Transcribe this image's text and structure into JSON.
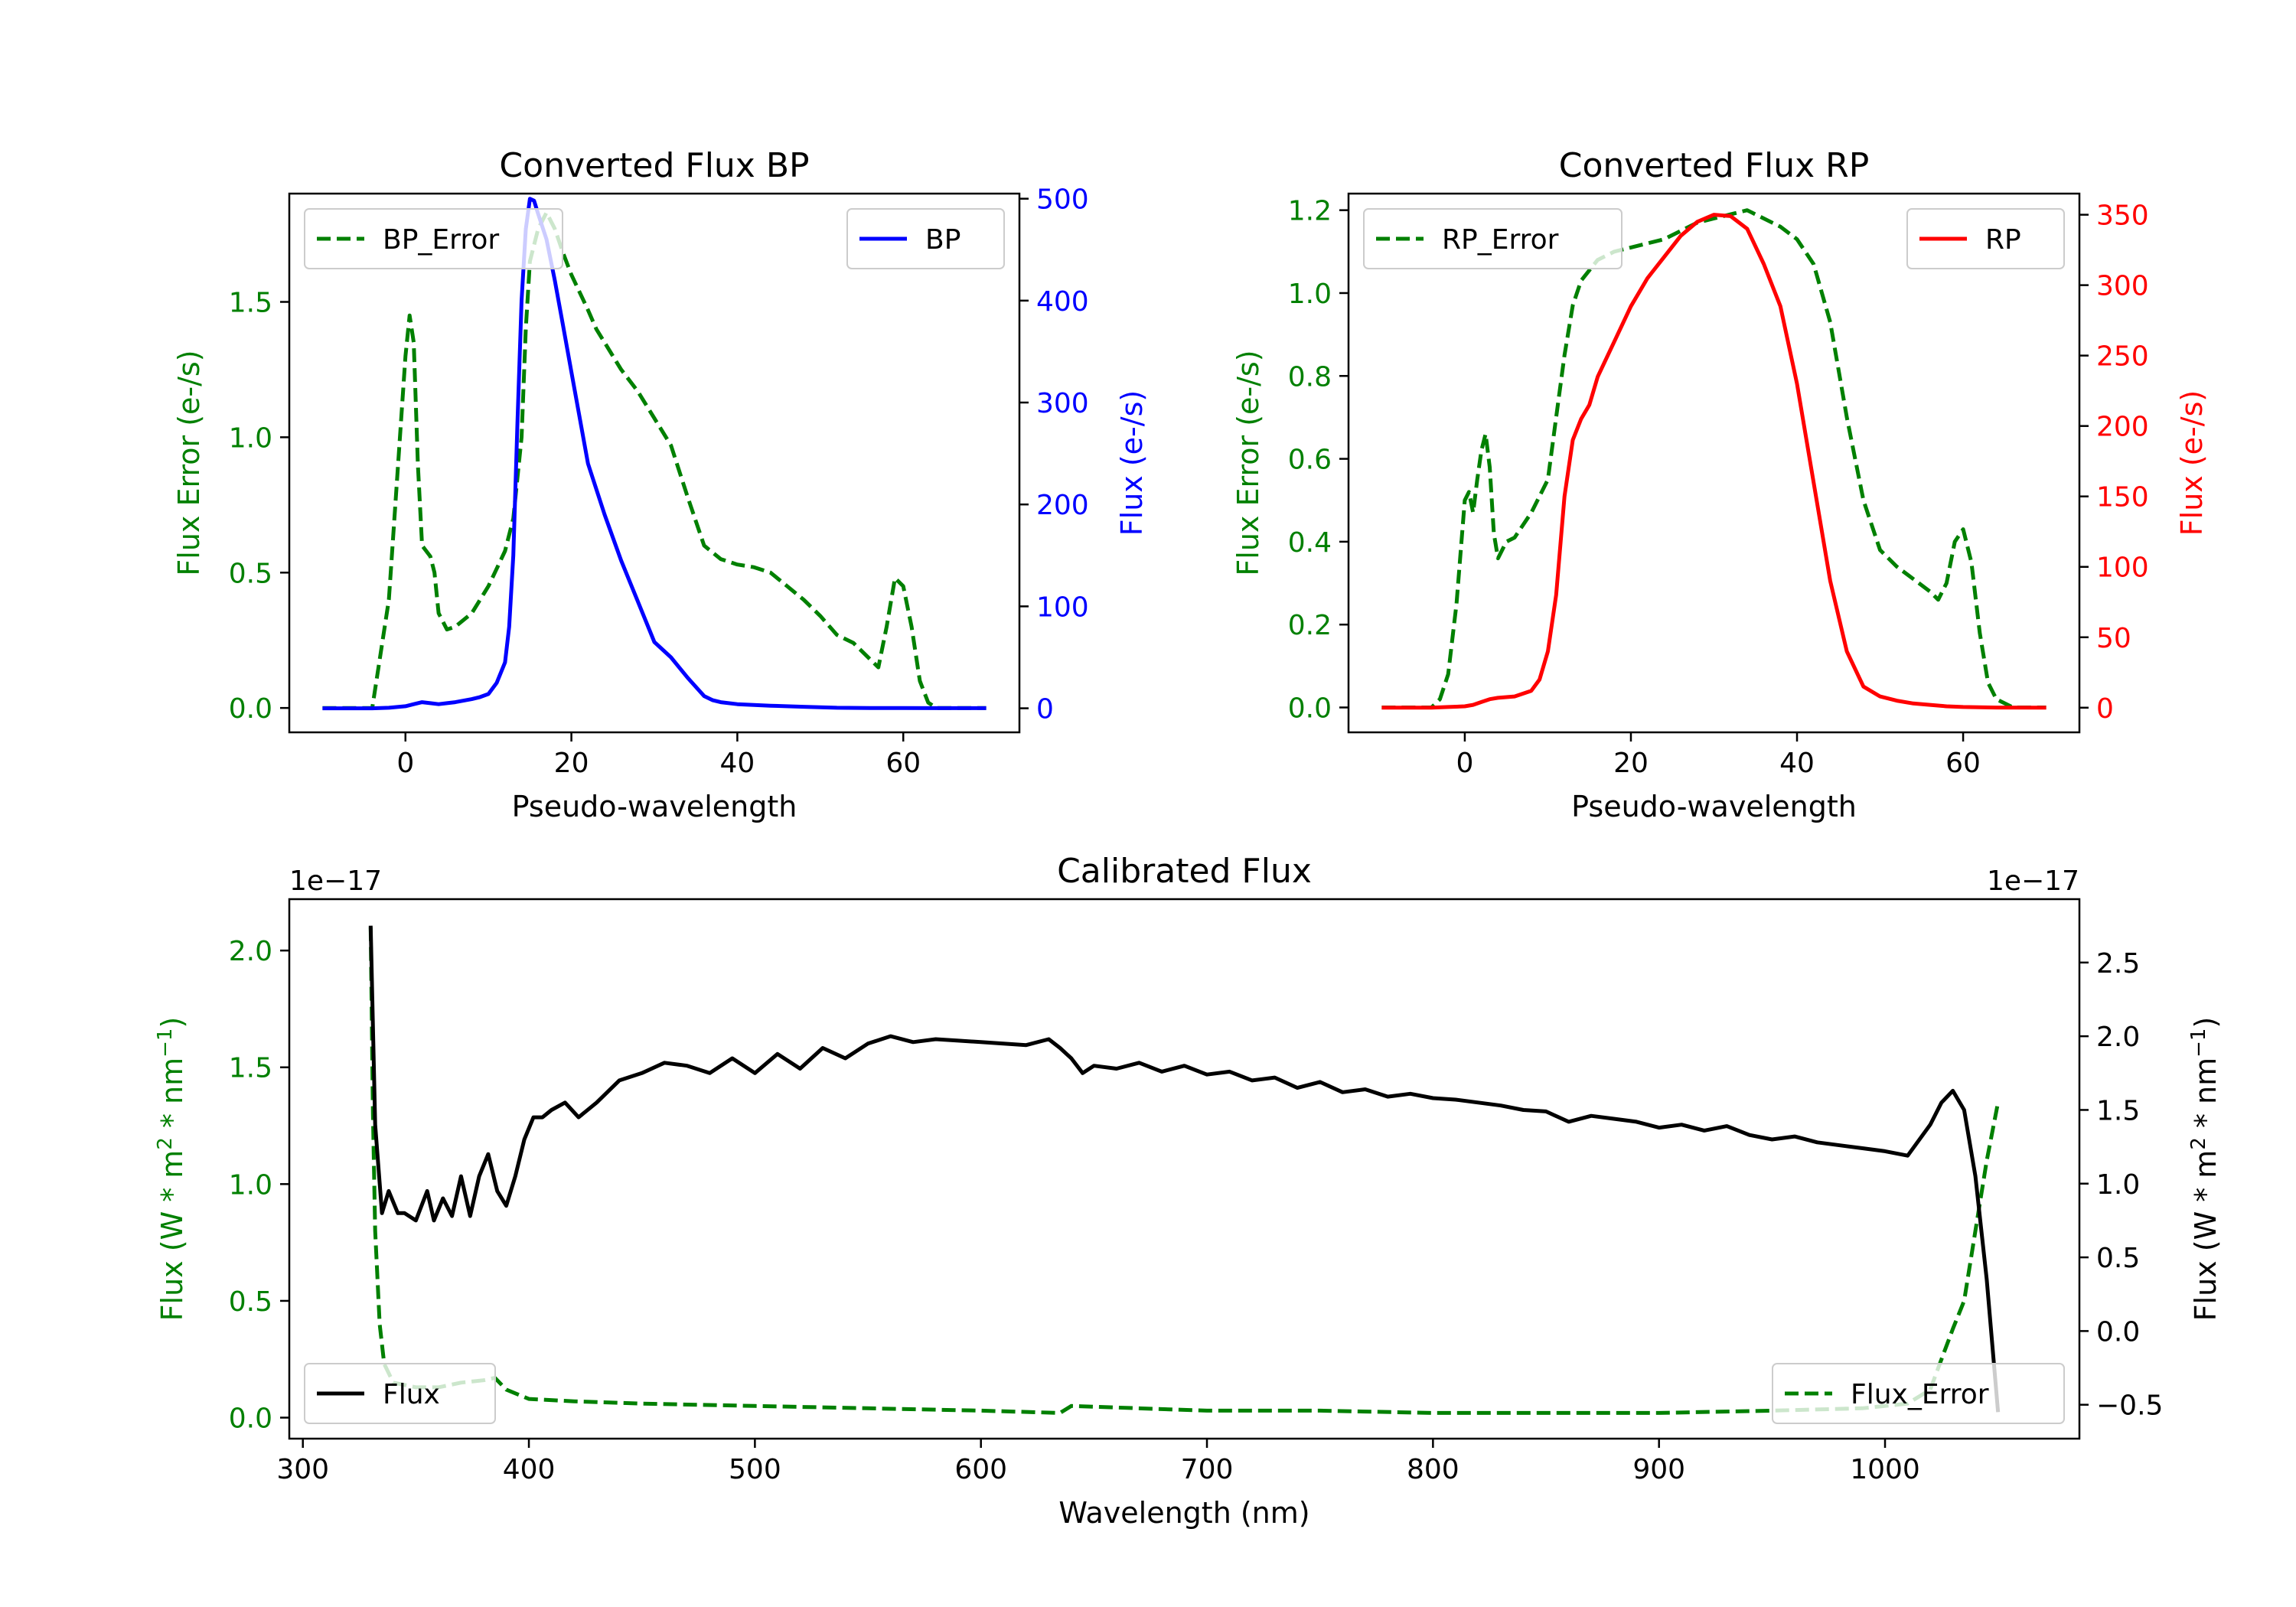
{
  "figure": {
    "background": "#ffffff"
  },
  "chart_data": [
    {
      "id": "bp",
      "type": "line",
      "title": "Converted Flux BP",
      "xlabel": "Pseudo-wavelength",
      "ylabel_left": "Flux Error (e-/s)",
      "ylabel_right": "Flux (e-/s)",
      "xlim": [
        -14,
        74
      ],
      "ylim_left": [
        -0.09,
        1.9
      ],
      "ylim_right": [
        -23.6,
        505
      ],
      "x_ticks": [
        0,
        20,
        40,
        60
      ],
      "x_tick_labels": [
        "0",
        "20",
        "40",
        "60"
      ],
      "y_ticks_left": [
        0.0,
        0.5,
        1.0,
        1.5
      ],
      "y_tick_labels_left": [
        "0.0",
        "0.5",
        "1.0",
        "1.5"
      ],
      "y_ticks_right": [
        0,
        100,
        200,
        300,
        400,
        500
      ],
      "y_tick_labels_right": [
        "0",
        "100",
        "200",
        "300",
        "400",
        "500"
      ],
      "left_color": "#008000",
      "right_color": "#0000ff",
      "series": [
        {
          "name": "BP_Error",
          "axis": "left",
          "style": "dashed",
          "color": "#008000",
          "x": [
            -10,
            -4,
            -2,
            0,
            0.5,
            1,
            1.5,
            2,
            3,
            3.5,
            4,
            5,
            6,
            8,
            10,
            12,
            13,
            14,
            14.5,
            15,
            16,
            17,
            18,
            19,
            20,
            22,
            23,
            24,
            26,
            28,
            30,
            32,
            34,
            36,
            38,
            40,
            42,
            44,
            46,
            48,
            50,
            52,
            54,
            56,
            57,
            58,
            59,
            60,
            61,
            62,
            63,
            64,
            65,
            67,
            70
          ],
          "y": [
            0.0,
            0.0,
            0.4,
            1.3,
            1.45,
            1.35,
            0.9,
            0.6,
            0.56,
            0.5,
            0.35,
            0.29,
            0.3,
            0.35,
            0.45,
            0.58,
            0.7,
            1.0,
            1.4,
            1.65,
            1.77,
            1.83,
            1.77,
            1.68,
            1.6,
            1.47,
            1.4,
            1.35,
            1.25,
            1.17,
            1.07,
            0.97,
            0.78,
            0.6,
            0.55,
            0.53,
            0.52,
            0.5,
            0.45,
            0.4,
            0.34,
            0.27,
            0.24,
            0.18,
            0.15,
            0.3,
            0.48,
            0.45,
            0.3,
            0.1,
            0.02,
            0.0,
            0.0,
            0.0,
            0.0
          ]
        },
        {
          "name": "BP",
          "axis": "right",
          "style": "solid",
          "color": "#0000ff",
          "x": [
            -10,
            -4,
            -2,
            0,
            1,
            2,
            3,
            4,
            5,
            6,
            8,
            9,
            10,
            11,
            12,
            12.5,
            13,
            13.5,
            14,
            14.5,
            15,
            15.5,
            16,
            17,
            18,
            19,
            20,
            22,
            24,
            26,
            28,
            30,
            32,
            34,
            36,
            37,
            38,
            40,
            44,
            48,
            52,
            56,
            60,
            64,
            70
          ],
          "y": [
            0,
            0,
            0.5,
            2,
            4,
            6,
            5,
            4,
            5,
            6,
            9,
            11,
            14,
            25,
            45,
            80,
            150,
            280,
            400,
            470,
            500,
            498,
            485,
            460,
            420,
            375,
            330,
            240,
            190,
            145,
            105,
            65,
            50,
            30,
            12,
            8,
            6,
            4,
            2.5,
            1.5,
            0.5,
            0.3,
            0.2,
            0.1,
            0.1
          ]
        }
      ],
      "legends": [
        {
          "label": "BP_Error",
          "location": "upper left"
        },
        {
          "label": "BP",
          "location": "upper right"
        }
      ]
    },
    {
      "id": "rp",
      "type": "line",
      "title": "Converted Flux RP",
      "xlabel": "Pseudo-wavelength",
      "ylabel_left": "Flux Error (e-/s)",
      "ylabel_right": "Flux (e-/s)",
      "xlim": [
        -14,
        74
      ],
      "ylim_left": [
        -0.06,
        1.24
      ],
      "ylim_right": [
        -17.5,
        365
      ],
      "x_ticks": [
        0,
        20,
        40,
        60
      ],
      "x_tick_labels": [
        "0",
        "20",
        "40",
        "60"
      ],
      "y_ticks_left": [
        0.0,
        0.2,
        0.4,
        0.6,
        0.8,
        1.0,
        1.2
      ],
      "y_tick_labels_left": [
        "0.0",
        "0.2",
        "0.4",
        "0.6",
        "0.8",
        "1.0",
        "1.2"
      ],
      "y_ticks_right": [
        0,
        50,
        100,
        150,
        200,
        250,
        300,
        350
      ],
      "y_tick_labels_right": [
        "0",
        "50",
        "100",
        "150",
        "200",
        "250",
        "300",
        "350"
      ],
      "left_color": "#008000",
      "right_color": "#ff0000",
      "series": [
        {
          "name": "RP_Error",
          "axis": "left",
          "style": "dashed",
          "color": "#008000",
          "x": [
            -10,
            -4,
            -3,
            -2,
            -1,
            0,
            0.5,
            1,
            1.5,
            2,
            2.5,
            3,
            3.5,
            4,
            5,
            6,
            8,
            10,
            11,
            12,
            13,
            14,
            16,
            18,
            20,
            22,
            24,
            26,
            28,
            30,
            32,
            34,
            36,
            38,
            40,
            42,
            44,
            46,
            48,
            50,
            52,
            54,
            56,
            57,
            58,
            59,
            60,
            61,
            62,
            63,
            64,
            66,
            70
          ],
          "y": [
            0.0,
            0.0,
            0.02,
            0.08,
            0.25,
            0.5,
            0.52,
            0.47,
            0.55,
            0.62,
            0.66,
            0.58,
            0.42,
            0.36,
            0.4,
            0.41,
            0.47,
            0.55,
            0.7,
            0.85,
            0.97,
            1.03,
            1.08,
            1.1,
            1.11,
            1.12,
            1.13,
            1.15,
            1.17,
            1.18,
            1.19,
            1.2,
            1.18,
            1.16,
            1.13,
            1.07,
            0.93,
            0.7,
            0.5,
            0.38,
            0.34,
            0.31,
            0.28,
            0.26,
            0.3,
            0.4,
            0.43,
            0.35,
            0.18,
            0.06,
            0.02,
            0.0,
            0.0
          ]
        },
        {
          "name": "RP",
          "axis": "right",
          "style": "solid",
          "color": "#ff0000",
          "x": [
            -10,
            -4,
            -2,
            0,
            1,
            2,
            3,
            4,
            5,
            6,
            8,
            9,
            10,
            11,
            12,
            13,
            14,
            15,
            16,
            18,
            20,
            22,
            24,
            26,
            28,
            30,
            32,
            34,
            36,
            38,
            40,
            42,
            44,
            46,
            48,
            50,
            52,
            54,
            56,
            58,
            60,
            62,
            64,
            70
          ],
          "y": [
            0,
            0,
            0.5,
            1,
            2,
            4,
            6,
            7,
            7.5,
            8,
            12,
            20,
            40,
            80,
            150,
            190,
            205,
            215,
            235,
            260,
            285,
            305,
            320,
            335,
            345,
            350,
            349,
            340,
            315,
            285,
            230,
            160,
            90,
            40,
            15,
            8,
            5,
            3,
            2,
            1,
            0.5,
            0.3,
            0.1,
            0.0
          ]
        }
      ],
      "legends": [
        {
          "label": "RP_Error",
          "location": "upper left"
        },
        {
          "label": "RP",
          "location": "upper right"
        }
      ]
    },
    {
      "id": "cal",
      "type": "line",
      "title": "Calibrated Flux",
      "xlabel": "Wavelength (nm)",
      "ylabel_left": "Flux (W * m$^2$ * nm$^{-1}$)",
      "ylabel_right": "Flux (W * m$^2$ * nm$^{-1}$)",
      "ylabel_parts": [
        "Flux (W * m",
        "2",
        " * nm",
        "−1",
        ")"
      ],
      "offset_left": "1e−17",
      "offset_right": "1e−17",
      "xlim": [
        294,
        1086
      ],
      "ylim_left": [
        -0.09,
        2.22
      ],
      "ylim_right": [
        -0.73,
        2.93
      ],
      "x_ticks": [
        300,
        400,
        500,
        600,
        700,
        800,
        900,
        1000
      ],
      "x_tick_labels": [
        "300",
        "400",
        "500",
        "600",
        "700",
        "800",
        "900",
        "1000"
      ],
      "y_ticks_left": [
        0.0,
        0.5,
        1.0,
        1.5,
        2.0
      ],
      "y_tick_labels_left": [
        "0.0",
        "0.5",
        "1.0",
        "1.5",
        "2.0"
      ],
      "y_ticks_right": [
        -0.5,
        0.0,
        0.5,
        1.0,
        1.5,
        2.0,
        2.5
      ],
      "y_tick_labels_right": [
        "−0.5",
        "0.0",
        "0.5",
        "1.0",
        "1.5",
        "2.0",
        "2.5"
      ],
      "left_color": "#008000",
      "right_color": "#000000",
      "series": [
        {
          "name": "Flux_Error",
          "axis": "left",
          "style": "dashed",
          "color": "#008000",
          "x": [
            330,
            331,
            332,
            334,
            336,
            340,
            350,
            360,
            370,
            380,
            385,
            390,
            400,
            420,
            450,
            500,
            550,
            600,
            635,
            640,
            700,
            750,
            800,
            850,
            900,
            950,
            990,
            1010,
            1020,
            1025,
            1030,
            1035,
            1040,
            1045,
            1050
          ],
          "y": [
            2.1,
            1.3,
            0.8,
            0.4,
            0.23,
            0.15,
            0.13,
            0.13,
            0.15,
            0.16,
            0.17,
            0.12,
            0.08,
            0.07,
            0.06,
            0.05,
            0.04,
            0.03,
            0.02,
            0.05,
            0.03,
            0.03,
            0.02,
            0.02,
            0.02,
            0.03,
            0.04,
            0.06,
            0.12,
            0.25,
            0.38,
            0.5,
            0.8,
            1.1,
            1.35
          ]
        },
        {
          "name": "Flux",
          "axis": "right",
          "style": "solid",
          "color": "#000000",
          "x": [
            330,
            332,
            335,
            338,
            342,
            345,
            350,
            355,
            358,
            362,
            366,
            370,
            374,
            378,
            382,
            386,
            390,
            394,
            398,
            402,
            406,
            410,
            416,
            422,
            430,
            440,
            450,
            460,
            470,
            480,
            490,
            500,
            510,
            520,
            530,
            540,
            550,
            560,
            570,
            580,
            590,
            600,
            610,
            620,
            630,
            635,
            640,
            645,
            650,
            660,
            670,
            680,
            690,
            700,
            710,
            720,
            730,
            740,
            750,
            760,
            770,
            780,
            790,
            800,
            810,
            820,
            830,
            840,
            850,
            860,
            870,
            880,
            890,
            900,
            910,
            920,
            930,
            940,
            950,
            960,
            970,
            980,
            990,
            1000,
            1010,
            1020,
            1025,
            1030,
            1035,
            1040,
            1045,
            1050
          ],
          "y": [
            2.75,
            1.4,
            0.8,
            0.95,
            0.8,
            0.8,
            0.75,
            0.95,
            0.75,
            0.9,
            0.78,
            1.05,
            0.78,
            1.05,
            1.2,
            0.95,
            0.85,
            1.05,
            1.3,
            1.45,
            1.45,
            1.5,
            1.55,
            1.45,
            1.55,
            1.7,
            1.75,
            1.82,
            1.8,
            1.75,
            1.85,
            1.75,
            1.88,
            1.78,
            1.92,
            1.85,
            1.95,
            2.0,
            1.96,
            1.98,
            1.97,
            1.96,
            1.95,
            1.94,
            1.98,
            1.92,
            1.85,
            1.75,
            1.8,
            1.78,
            1.82,
            1.76,
            1.8,
            1.74,
            1.76,
            1.7,
            1.72,
            1.65,
            1.69,
            1.62,
            1.64,
            1.59,
            1.61,
            1.58,
            1.57,
            1.55,
            1.53,
            1.5,
            1.49,
            1.42,
            1.46,
            1.44,
            1.42,
            1.38,
            1.4,
            1.36,
            1.39,
            1.33,
            1.3,
            1.32,
            1.28,
            1.26,
            1.24,
            1.22,
            1.19,
            1.4,
            1.55,
            1.63,
            1.5,
            1.05,
            0.35,
            -0.55
          ]
        }
      ],
      "legends": [
        {
          "label": "Flux",
          "location": "lower left"
        },
        {
          "label": "Flux_Error",
          "location": "lower right"
        }
      ]
    }
  ]
}
